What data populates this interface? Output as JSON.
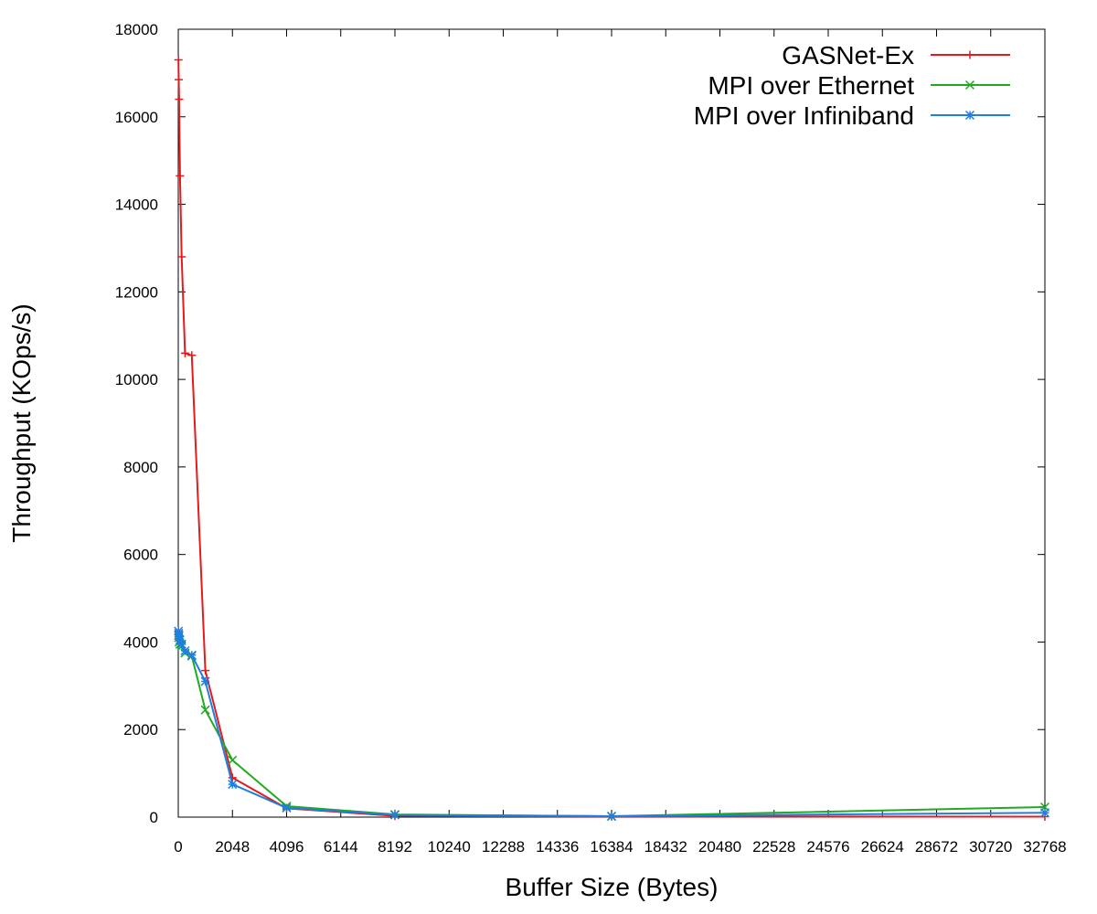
{
  "chart_data": {
    "type": "line",
    "title": "",
    "xlabel": "Buffer Size (Bytes)",
    "ylabel": "Throughput (KOps/s)",
    "xlim": [
      0,
      32768
    ],
    "ylim": [
      0,
      18000
    ],
    "grid": false,
    "legend_position": "top-right",
    "x_ticks": [
      0,
      2048,
      4096,
      6144,
      8192,
      10240,
      12288,
      14336,
      16384,
      18432,
      20480,
      22528,
      24576,
      26624,
      28672,
      30720,
      32768
    ],
    "y_ticks": [
      0,
      2000,
      4000,
      6000,
      8000,
      10000,
      12000,
      14000,
      16000,
      18000
    ],
    "x": [
      8,
      16,
      32,
      64,
      128,
      256,
      512,
      1024,
      2048,
      4096,
      8192,
      16384,
      32768
    ],
    "series": [
      {
        "name": "GASNet-Ex",
        "color": "#e41a1c",
        "marker": "plus",
        "values": [
          17300,
          16850,
          16400,
          14650,
          12800,
          10600,
          10550,
          3350,
          900,
          200,
          30,
          15,
          10
        ]
      },
      {
        "name": "MPI over Ethernet",
        "color": "#1faa1f",
        "marker": "cross",
        "values": [
          4150,
          4100,
          4000,
          3950,
          3900,
          3750,
          3680,
          2450,
          1300,
          250,
          60,
          20,
          230
        ]
      },
      {
        "name": "MPI over Infiniband",
        "color": "#1e7fe0",
        "marker": "star",
        "values": [
          4250,
          4200,
          4150,
          4050,
          3950,
          3800,
          3700,
          3100,
          750,
          210,
          50,
          20,
          100
        ]
      }
    ]
  }
}
